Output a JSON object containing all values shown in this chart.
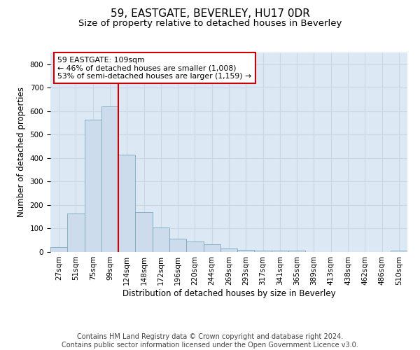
{
  "title": "59, EASTGATE, BEVERLEY, HU17 0DR",
  "subtitle": "Size of property relative to detached houses in Beverley",
  "xlabel": "Distribution of detached houses by size in Beverley",
  "ylabel": "Number of detached properties",
  "categories": [
    "27sqm",
    "51sqm",
    "75sqm",
    "99sqm",
    "124sqm",
    "148sqm",
    "172sqm",
    "196sqm",
    "220sqm",
    "244sqm",
    "269sqm",
    "293sqm",
    "317sqm",
    "341sqm",
    "365sqm",
    "389sqm",
    "413sqm",
    "438sqm",
    "462sqm",
    "486sqm",
    "510sqm"
  ],
  "bar_heights": [
    20,
    165,
    565,
    620,
    415,
    170,
    105,
    57,
    45,
    33,
    15,
    10,
    7,
    5,
    5,
    0,
    0,
    0,
    0,
    0,
    7
  ],
  "bar_color": "#ccdcec",
  "bar_edge_color": "#7aaabb",
  "vline_x": 3.5,
  "vline_color": "#cc0000",
  "annotation_text": "59 EASTGATE: 109sqm\n← 46% of detached houses are smaller (1,008)\n53% of semi-detached houses are larger (1,159) →",
  "annotation_box_color": "#ffffff",
  "annotation_box_edge": "#cc0000",
  "ylim": [
    0,
    850
  ],
  "yticks": [
    0,
    100,
    200,
    300,
    400,
    500,
    600,
    700,
    800
  ],
  "grid_color": "#c8d8e8",
  "bg_color": "#dce8f4",
  "footer": "Contains HM Land Registry data © Crown copyright and database right 2024.\nContains public sector information licensed under the Open Government Licence v3.0.",
  "title_fontsize": 11,
  "subtitle_fontsize": 9.5,
  "label_fontsize": 8.5,
  "tick_fontsize": 7.5,
  "footer_fontsize": 7
}
